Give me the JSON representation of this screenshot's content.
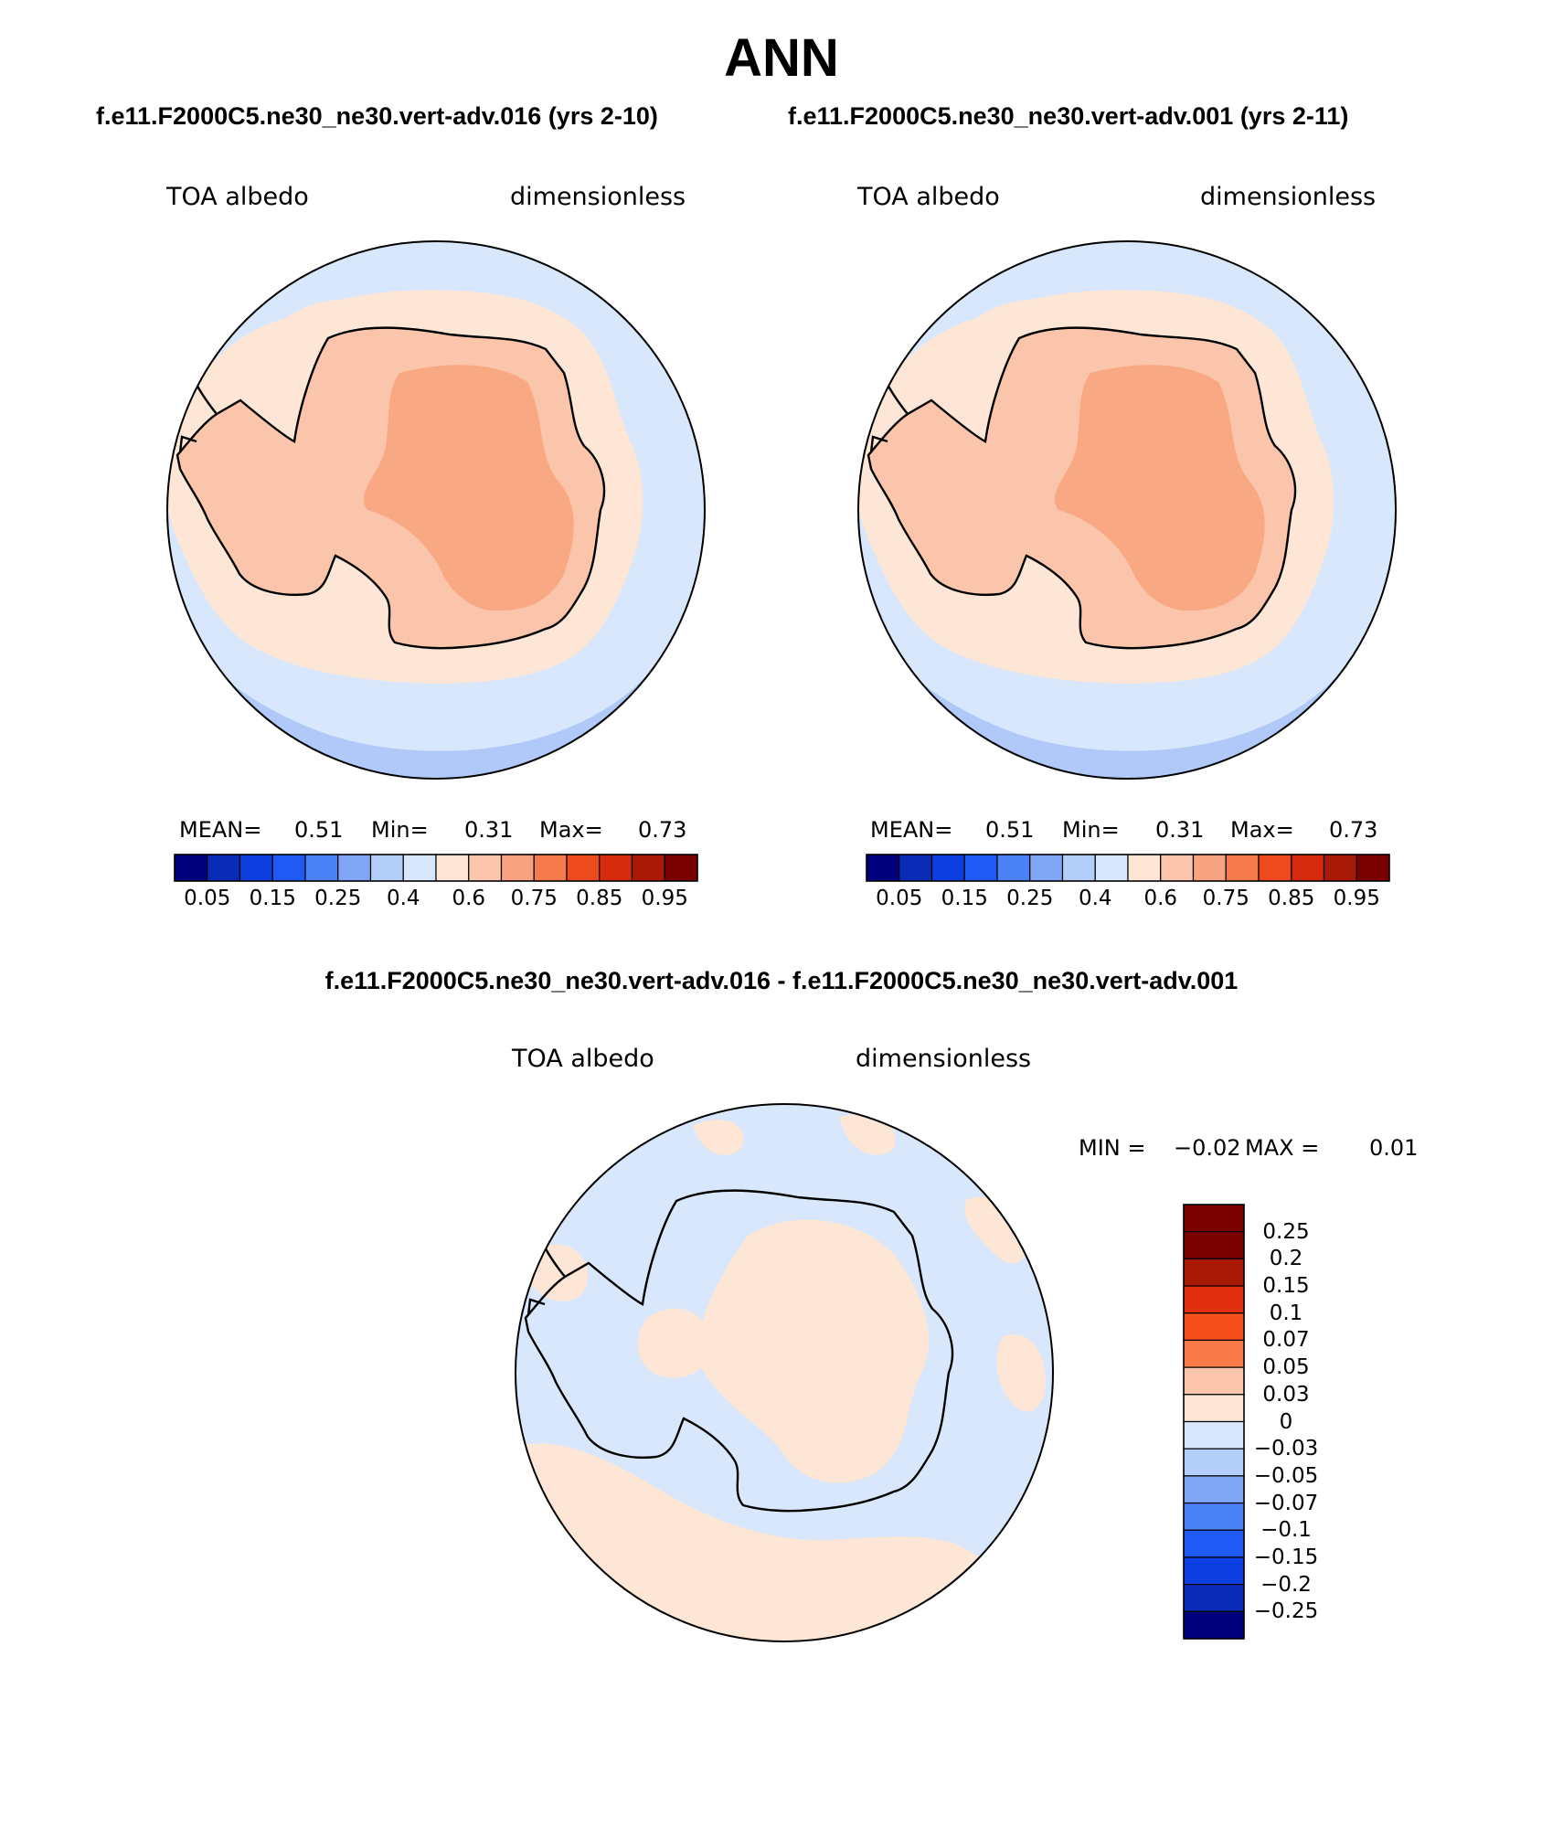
{
  "title": "ANN",
  "case1_title": "f.e11.F2000C5.ne30_ne30.vert-adv.016 (yrs 2-10)",
  "case2_title": "f.e11.F2000C5.ne30_ne30.vert-adv.001 (yrs 2-11)",
  "diff_title": "f.e11.F2000C5.ne30_ne30.vert-adv.016 - f.e11.F2000C5.ne30_ne30.vert-adv.001",
  "panels": [
    {
      "variable": "TOA albedo",
      "units": "dimensionless",
      "mean_label": "MEAN=",
      "mean": "0.51",
      "min_label": "Min=",
      "min": "0.31",
      "max_label": "Max=",
      "max": "0.73"
    },
    {
      "variable": "TOA albedo",
      "units": "dimensionless",
      "mean_label": "MEAN=",
      "mean": "0.51",
      "min_label": "Min=",
      "min": "0.31",
      "max_label": "Max=",
      "max": "0.73"
    }
  ],
  "diff_panel": {
    "variable": "TOA albedo",
    "units": "dimensionless",
    "min_label": "MIN =",
    "min": "−0.02",
    "max_label": "MAX =",
    "max": "0.01"
  },
  "colorbar_main": {
    "labels": [
      "0.05",
      "0.15",
      "0.25",
      "0.4",
      "0.6",
      "0.75",
      "0.85",
      "0.95"
    ],
    "colors": [
      "#00007d",
      "#0a2bb5",
      "#0d3fe0",
      "#1f5af5",
      "#4a82f5",
      "#7ea6f5",
      "#b3cef9",
      "#d8e7fb",
      "#fde6d6",
      "#fbc5ab",
      "#f8a37f",
      "#f57a4d",
      "#ef4a1e",
      "#d52a0c",
      "#a81a06",
      "#7a0000"
    ]
  },
  "colorbar_diff": {
    "labels": [
      "0.25",
      "0.2",
      "0.15",
      "0.1",
      "0.07",
      "0.05",
      "0.03",
      "0",
      "−0.03",
      "−0.05",
      "−0.07",
      "−0.1",
      "−0.15",
      "−0.2",
      "−0.25"
    ],
    "colors": [
      "#7a0000",
      "#a81a06",
      "#e03010",
      "#f5501c",
      "#f87a48",
      "#fbc5ab",
      "#fde6d6",
      "#d8e7fb",
      "#b3cef9",
      "#7ea6f5",
      "#4a82f5",
      "#1f5af5",
      "#0d3fe0",
      "#0a2bb5",
      "#00007d"
    ]
  },
  "map_colors": {
    "ocean_far": "#b0c9f8",
    "ocean_near": "#d8e7fb",
    "ice_low": "#fde6d6",
    "ice_mid": "#fbc5ab",
    "ice_high": "#f8a882",
    "diff_neg": "#d8e7fb",
    "diff_pos": "#fde6d6"
  }
}
